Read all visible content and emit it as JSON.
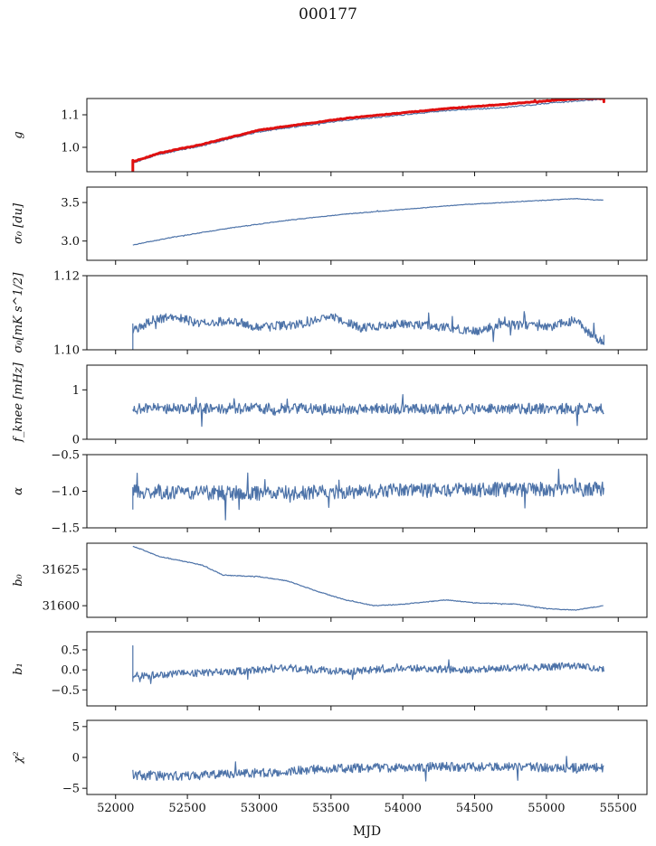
{
  "figure": {
    "title": "000177"
  },
  "chart_data": {
    "type": "line",
    "shared_x": {
      "label": "MJD",
      "range": [
        51800,
        55700
      ],
      "ticks": [
        52000,
        52500,
        53000,
        53500,
        54000,
        54500,
        55000,
        55500
      ],
      "tick_labels": [
        "52000",
        "52500",
        "53000",
        "53500",
        "54000",
        "54500",
        "55000",
        "55500"
      ]
    },
    "data_span": [
      52120,
      55400
    ],
    "panels": [
      {
        "ylabel": "g",
        "ylim": [
          0.925,
          1.15
        ],
        "yticks": [
          1.0,
          1.1
        ],
        "ytick_labels": [
          "1.0",
          "1.1"
        ],
        "series": [
          {
            "color": "#4c72a8",
            "width": 1.2,
            "noise": 0.002,
            "step": 8,
            "start_spike": [
              0.935,
              0.96
            ],
            "knots": [
              [
                52120,
                0.952
              ],
              [
                52300,
                0.978
              ],
              [
                52600,
                1.005
              ],
              [
                52800,
                1.027
              ],
              [
                53000,
                1.048
              ],
              [
                53300,
                1.066
              ],
              [
                53600,
                1.083
              ],
              [
                54000,
                1.1
              ],
              [
                54300,
                1.113
              ],
              [
                54700,
                1.122
              ],
              [
                55000,
                1.135
              ],
              [
                55250,
                1.144
              ],
              [
                55400,
                1.147
              ]
            ]
          },
          {
            "color": "#e01010",
            "width": 3,
            "noise": 0.001,
            "step": 8,
            "start_spike": [
              0.925,
              0.96
            ],
            "end_spike": [
              1.14,
              1.15
            ],
            "knots": [
              [
                52120,
                0.955
              ],
              [
                52300,
                0.982
              ],
              [
                52600,
                1.009
              ],
              [
                52800,
                1.031
              ],
              [
                53000,
                1.053
              ],
              [
                53300,
                1.071
              ],
              [
                53600,
                1.089
              ],
              [
                54000,
                1.106
              ],
              [
                54300,
                1.119
              ],
              [
                54700,
                1.132
              ],
              [
                55000,
                1.143
              ],
              [
                55250,
                1.15
              ],
              [
                55400,
                1.15
              ]
            ]
          }
        ]
      },
      {
        "ylabel": "σ₀ [du]",
        "ylim": [
          2.75,
          3.7
        ],
        "yticks": [
          3.0,
          3.5
        ],
        "ytick_labels": [
          "3.0",
          "3.5"
        ],
        "series": [
          {
            "color": "#4c72a8",
            "width": 1.2,
            "noise": 0.004,
            "step": 6,
            "knots": [
              [
                52120,
                2.95
              ],
              [
                52400,
                3.05
              ],
              [
                52800,
                3.17
              ],
              [
                53200,
                3.27
              ],
              [
                53600,
                3.35
              ],
              [
                54000,
                3.41
              ],
              [
                54400,
                3.47
              ],
              [
                54800,
                3.51
              ],
              [
                55200,
                3.55
              ],
              [
                55400,
                3.53
              ]
            ]
          }
        ]
      },
      {
        "ylabel": "σ₀[mK s^1/2]",
        "ylim": [
          1.1,
          1.12
        ],
        "yticks": [
          1.1,
          1.12
        ],
        "ytick_labels": [
          "1.10",
          "1.12"
        ],
        "series": [
          {
            "color": "#4c72a8",
            "width": 1.2,
            "noise": 0.0012,
            "step": 5,
            "start_spike": [
              1.1,
              1.107
            ],
            "end_spike": [
              1.1015,
              1.104
            ],
            "knots": [
              [
                52120,
                1.105
              ],
              [
                52250,
                1.108
              ],
              [
                52400,
                1.109
              ],
              [
                52600,
                1.107
              ],
              [
                52800,
                1.108
              ],
              [
                53000,
                1.106
              ],
              [
                53300,
                1.107
              ],
              [
                53500,
                1.109
              ],
              [
                53700,
                1.106
              ],
              [
                54000,
                1.107
              ],
              [
                54300,
                1.106
              ],
              [
                54500,
                1.105
              ],
              [
                54700,
                1.107
              ],
              [
                55000,
                1.106
              ],
              [
                55200,
                1.108
              ],
              [
                55350,
                1.103
              ],
              [
                55400,
                1.102
              ]
            ]
          }
        ]
      },
      {
        "ylabel": "f_knee [mHz]",
        "ylim": [
          0,
          1.5
        ],
        "yticks": [
          0,
          1
        ],
        "ytick_labels": [
          "0",
          "1"
        ],
        "series": [
          {
            "color": "#4c72a8",
            "width": 1.2,
            "noise": 0.11,
            "step": 5,
            "knots": [
              [
                52120,
                0.62
              ],
              [
                55400,
                0.62
              ]
            ]
          }
        ]
      },
      {
        "ylabel": "α",
        "ylim": [
          -1.5,
          -0.5
        ],
        "yticks": [
          -1.5,
          -1.0,
          -0.5
        ],
        "ytick_labels": [
          "−1.5",
          "−1.0",
          "−0.5"
        ],
        "series": [
          {
            "color": "#4c72a8",
            "width": 1.2,
            "noise": 0.1,
            "step": 5,
            "start_spike": [
              -1.25,
              -0.95
            ],
            "knots": [
              [
                52120,
                -1.0
              ],
              [
                53000,
                -1.03
              ],
              [
                54000,
                -0.99
              ],
              [
                55400,
                -0.97
              ]
            ]
          }
        ]
      },
      {
        "ylabel": "b₀",
        "ylim": [
          31592,
          31643
        ],
        "yticks": [
          31600,
          31625
        ],
        "ytick_labels": [
          "31600",
          "31625"
        ],
        "series": [
          {
            "color": "#4c72a8",
            "width": 1.2,
            "noise": 0.25,
            "step": 6,
            "knots": [
              [
                52120,
                31641
              ],
              [
                52200,
                31638
              ],
              [
                52300,
                31634
              ],
              [
                52600,
                31628
              ],
              [
                52750,
                31621
              ],
              [
                53000,
                31620
              ],
              [
                53200,
                31617
              ],
              [
                53400,
                31610
              ],
              [
                53600,
                31604
              ],
              [
                53800,
                31600
              ],
              [
                54000,
                31601
              ],
              [
                54300,
                31604
              ],
              [
                54500,
                31602
              ],
              [
                54800,
                31601
              ],
              [
                55000,
                31598
              ],
              [
                55200,
                31597
              ],
              [
                55400,
                31600
              ]
            ]
          }
        ]
      },
      {
        "ylabel": "b₁",
        "ylim": [
          -0.9,
          0.95
        ],
        "yticks": [
          -0.5,
          0.0,
          0.5
        ],
        "ytick_labels": [
          "−0.5",
          "0.0",
          "0.5"
        ],
        "series": [
          {
            "color": "#4c72a8",
            "width": 1.2,
            "noise": 0.09,
            "step": 5,
            "start_spike": [
              -0.3,
              0.6
            ],
            "knots": [
              [
                52120,
                -0.15
              ],
              [
                52400,
                -0.1
              ],
              [
                52800,
                -0.05
              ],
              [
                53200,
                0.05
              ],
              [
                53600,
                -0.05
              ],
              [
                54000,
                0.05
              ],
              [
                54400,
                0.0
              ],
              [
                54800,
                0.05
              ],
              [
                55200,
                0.1
              ],
              [
                55400,
                0.0
              ]
            ]
          }
        ]
      },
      {
        "ylabel": "χ²",
        "ylim": [
          -6,
          6
        ],
        "yticks": [
          -5,
          0,
          5
        ],
        "ytick_labels": [
          "−5",
          "0",
          "5"
        ],
        "series": [
          {
            "color": "#4c72a8",
            "width": 1.2,
            "noise": 0.75,
            "step": 5,
            "knots": [
              [
                52120,
                -2.9
              ],
              [
                52500,
                -3.0
              ],
              [
                53000,
                -2.5
              ],
              [
                53500,
                -1.8
              ],
              [
                54000,
                -1.6
              ],
              [
                54500,
                -1.5
              ],
              [
                55000,
                -1.6
              ],
              [
                55400,
                -1.7
              ]
            ]
          }
        ]
      }
    ]
  }
}
